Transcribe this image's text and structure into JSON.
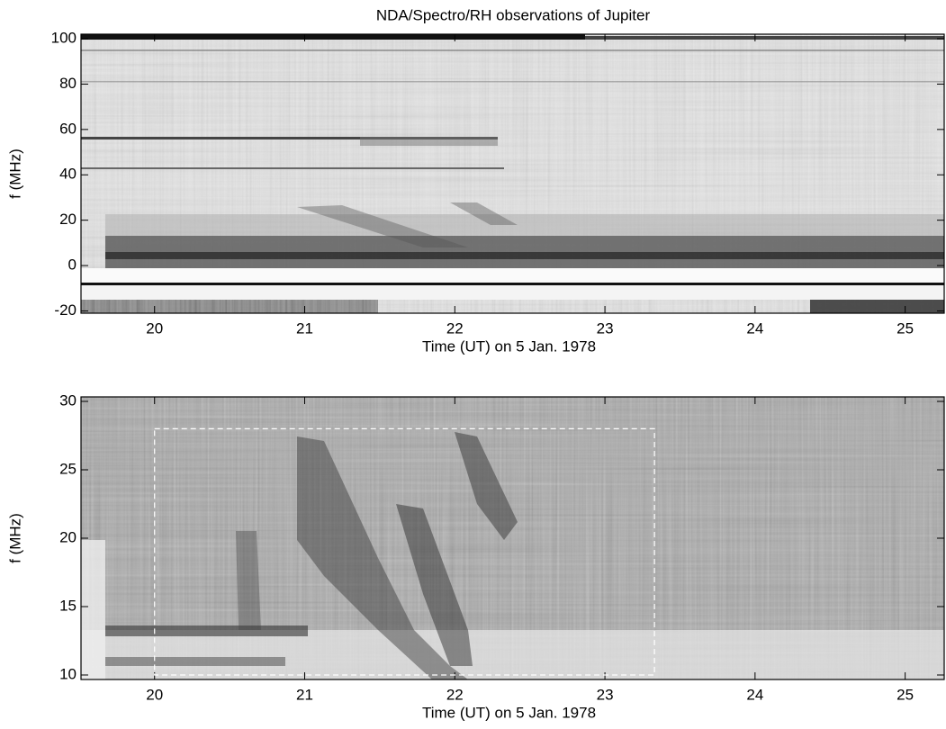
{
  "chart_data": [
    {
      "type": "spectrogram",
      "title": "NDA/Spectro/RH observations of Jupiter",
      "xlabel": "Time (UT) on 5 Jan. 1978",
      "ylabel": "f (MHz)",
      "xlim": [
        19.51,
        25.26
      ],
      "ylim": [
        -21,
        102
      ],
      "xticks": [
        20,
        21,
        22,
        23,
        24,
        25
      ],
      "yticks": [
        -20,
        0,
        20,
        40,
        60,
        80,
        100
      ]
    },
    {
      "type": "spectrogram",
      "xlabel": "Time (UT) on 5 Jan. 1978",
      "ylabel": "f (MHz)",
      "xlim": [
        19.51,
        25.26
      ],
      "ylim": [
        9.67,
        30.33
      ],
      "xticks": [
        20,
        21,
        22,
        23,
        24,
        25
      ],
      "yticks": [
        10,
        15,
        20,
        25,
        30
      ],
      "box": {
        "x": [
          20,
          23.33
        ],
        "y": [
          10,
          28
        ]
      }
    }
  ]
}
